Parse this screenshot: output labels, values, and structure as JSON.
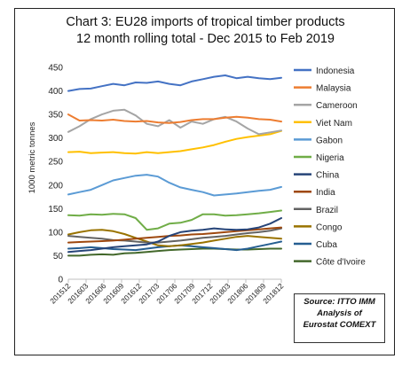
{
  "colors": {
    "Indonesia": "#4472C4",
    "Malaysia": "#ED7D31",
    "Cameroon": "#A5A5A5",
    "Viet Nam": "#FFC000",
    "Gabon": "#5B9BD5",
    "Nigeria": "#70AD47",
    "China": "#264478",
    "India": "#9E480E",
    "Brazil": "#636363",
    "Congo": "#997300",
    "Cuba": "#255E91",
    "Côte d'Ivoire": "#43682B"
  },
  "source": {
    "line1": "Source: ITTO IMM",
    "line2": "Analysis of",
    "line3": "Eurostat COMEXT"
  },
  "chart_data": {
    "type": "line",
    "title": "Chart 3: EU28 imports of tropical timber products",
    "subtitle": "12 month rolling total - Dec 2015 to Feb 2019",
    "ylabel": "1000 metric tonnes",
    "xlabel": "",
    "ylim": [
      0,
      450
    ],
    "yticks": [
      0,
      50,
      100,
      150,
      200,
      250,
      300,
      350,
      400,
      450
    ],
    "grid": false,
    "legend_position": "right",
    "x_tick_labels": [
      "201512",
      "201603",
      "201606",
      "201609",
      "201612",
      "201703",
      "201706",
      "201709",
      "201712",
      "201803",
      "201806",
      "201809",
      "201812"
    ],
    "series": [
      {
        "name": "Indonesia",
        "values": [
          400,
          404,
          405,
          410,
          415,
          412,
          418,
          417,
          420,
          415,
          412,
          420,
          425,
          430,
          433,
          427,
          430,
          427,
          425,
          428
        ]
      },
      {
        "name": "Malaysia",
        "values": [
          350,
          337,
          338,
          337,
          339,
          336,
          335,
          336,
          333,
          332,
          334,
          338,
          340,
          340,
          343,
          345,
          343,
          340,
          339,
          335
        ]
      },
      {
        "name": "Cameroon",
        "values": [
          313,
          325,
          340,
          350,
          358,
          360,
          348,
          330,
          325,
          338,
          322,
          335,
          330,
          340,
          345,
          335,
          320,
          308,
          312,
          316
        ]
      },
      {
        "name": "Viet Nam",
        "values": [
          270,
          271,
          268,
          269,
          270,
          268,
          267,
          270,
          268,
          270,
          272,
          276,
          280,
          285,
          292,
          298,
          302,
          305,
          308,
          315
        ]
      },
      {
        "name": "Gabon",
        "values": [
          180,
          185,
          190,
          200,
          210,
          215,
          220,
          222,
          218,
          205,
          195,
          190,
          185,
          178,
          180,
          182,
          185,
          188,
          190,
          196
        ]
      },
      {
        "name": "Nigeria",
        "values": [
          136,
          135,
          138,
          137,
          139,
          138,
          130,
          105,
          108,
          118,
          120,
          126,
          138,
          138,
          135,
          136,
          138,
          140,
          143,
          146
        ]
      },
      {
        "name": "China",
        "values": [
          58,
          60,
          62,
          65,
          68,
          70,
          72,
          74,
          80,
          92,
          100,
          103,
          105,
          108,
          106,
          105,
          106,
          110,
          118,
          130
        ]
      },
      {
        "name": "India",
        "values": [
          78,
          79,
          80,
          81,
          82,
          84,
          86,
          88,
          90,
          92,
          93,
          95,
          96,
          98,
          100,
          102,
          104,
          106,
          108,
          110
        ]
      },
      {
        "name": "Brazil",
        "values": [
          92,
          90,
          88,
          86,
          83,
          82,
          80,
          78,
          78,
          80,
          82,
          85,
          88,
          90,
          92,
          95,
          98,
          100,
          103,
          108
        ]
      },
      {
        "name": "Congo",
        "values": [
          95,
          100,
          104,
          105,
          102,
          96,
          88,
          80,
          72,
          70,
          72,
          75,
          78,
          82,
          86,
          90,
          92,
          90,
          88,
          86
        ]
      },
      {
        "name": "Cuba",
        "values": [
          65,
          66,
          68,
          66,
          64,
          63,
          62,
          65,
          68,
          70,
          72,
          70,
          68,
          66,
          64,
          62,
          65,
          70,
          75,
          80
        ]
      },
      {
        "name": "Côte d'Ivoire",
        "values": [
          50,
          50,
          52,
          53,
          52,
          55,
          56,
          58,
          60,
          62,
          63,
          64,
          65,
          65,
          64,
          63,
          63,
          64,
          65,
          65
        ]
      }
    ]
  }
}
